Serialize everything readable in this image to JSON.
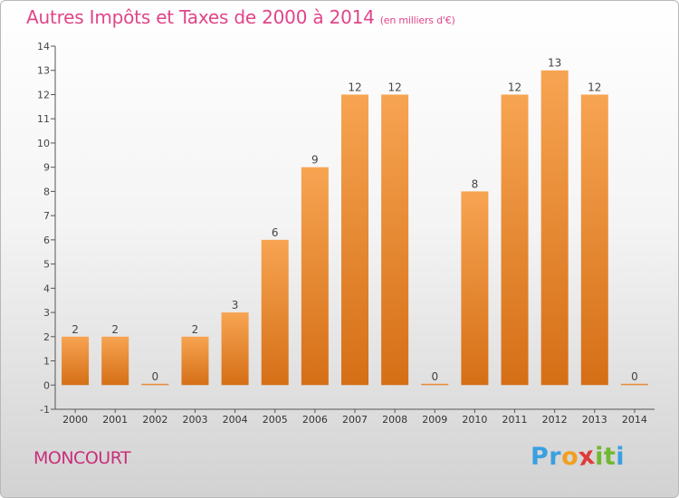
{
  "title": "Autres Impôts et Taxes de 2000 à 2014",
  "unit_note": "(en milliers d'€)",
  "commune": "MONCOURT",
  "logo": {
    "letters": [
      "P",
      "r",
      "o",
      "x",
      "i",
      "t",
      "i"
    ],
    "colors": [
      "#3aa0e0",
      "#3aa0e0",
      "#f0a020",
      "#e03a3a",
      "#70b830",
      "#70b830",
      "#3aa0e0"
    ]
  },
  "colors": {
    "bar_top": "#f7a452",
    "bar_bottom": "#d56f16",
    "title": "#e0458a",
    "axis": "#555555"
  },
  "chart_data": {
    "type": "bar",
    "categories": [
      "2000",
      "2001",
      "2002",
      "2003",
      "2004",
      "2005",
      "2006",
      "2007",
      "2008",
      "2009",
      "2010",
      "2011",
      "2012",
      "2013",
      "2014"
    ],
    "values": [
      2,
      2,
      0,
      2,
      3,
      6,
      9,
      12,
      12,
      0,
      8,
      12,
      13,
      12,
      0
    ],
    "y_ticks": [
      "-1",
      "0",
      "1",
      "2",
      "3",
      "4",
      "5",
      "6",
      "7",
      "8",
      "9",
      "10",
      "11",
      "12",
      "13",
      "14"
    ],
    "ylim": [
      -1,
      14
    ],
    "grid": false,
    "legend": "none"
  }
}
